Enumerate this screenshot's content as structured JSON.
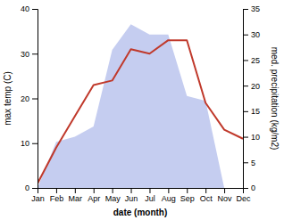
{
  "chart_data": {
    "type": "line",
    "xlabel": "date (month)",
    "ylabel": "max temp (C)",
    "y2label": "med. precipitation (kg/m2)",
    "categories": [
      "Jan",
      "Feb",
      "Mar",
      "Apr",
      "May",
      "Jun",
      "Jul",
      "Aug",
      "Sep",
      "Oct",
      "Nov",
      "Dec"
    ],
    "series": [
      {
        "type": "area",
        "color": "#c5cdf0",
        "axis": "y2",
        "values": [
          0,
          9,
          10,
          12,
          27,
          32,
          30,
          30,
          18,
          17,
          0,
          0
        ]
      },
      {
        "type": "line",
        "color": "#c0392b",
        "values": [
          1,
          9,
          16,
          23,
          24,
          31,
          30,
          33,
          33,
          19,
          13,
          11
        ]
      }
    ],
    "ylim": [
      0,
      40
    ],
    "yticks": [
      0,
      10,
      20,
      30,
      40
    ],
    "y2lim": [
      0,
      35
    ],
    "y2ticks": [
      0,
      5,
      10,
      15,
      20,
      25,
      30,
      35
    ],
    "grid": false
  }
}
